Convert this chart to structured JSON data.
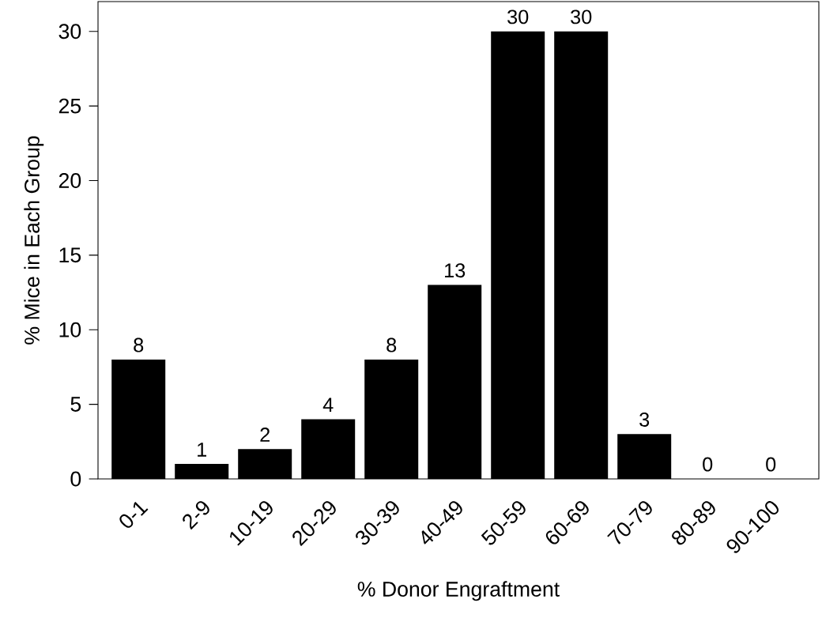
{
  "chart_data": {
    "type": "bar",
    "xlabel": "% Donor Engraftment",
    "ylabel": "% Mice in Each Group",
    "categories": [
      "0-1",
      "2-9",
      "10-19",
      "20-29",
      "30-39",
      "40-49",
      "50-59",
      "60-69",
      "70-79",
      "80-89",
      "90-100"
    ],
    "values": [
      8,
      1,
      2,
      4,
      8,
      13,
      30,
      30,
      3,
      0,
      0
    ],
    "color": "#000000",
    "ylim": [
      0,
      32
    ],
    "yticks": [
      0,
      5,
      10,
      15,
      20,
      25,
      30
    ],
    "data_labels": true
  }
}
